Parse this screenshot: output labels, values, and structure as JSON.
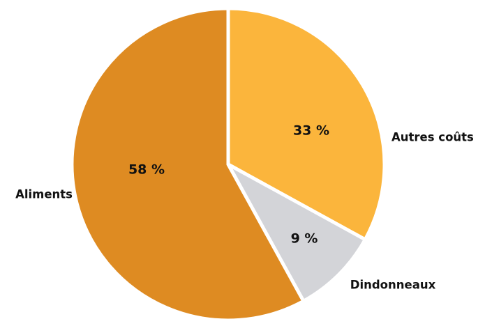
{
  "chart_data": {
    "type": "pie",
    "slices": [
      {
        "label": "Autres coûts",
        "value": 33,
        "value_label": "33 %",
        "color": "#fbb53c"
      },
      {
        "label": "Dindonneaux",
        "value": 9,
        "value_label": "9 %",
        "color": "#d3d4d8"
      },
      {
        "label": "Aliments",
        "value": 58,
        "value_label": "58 %",
        "color": "#de8b22"
      }
    ],
    "start_angle": "12 o'clock",
    "direction": "clockwise",
    "legend": "none",
    "separator_color": "#ffffff"
  }
}
